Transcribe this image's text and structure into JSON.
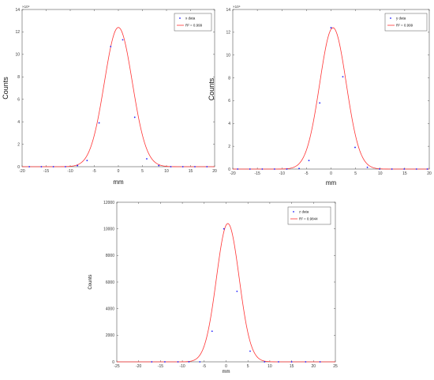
{
  "chart_data": [
    {
      "type": "scatter",
      "xlabel": "mm",
      "ylabel": "Counts",
      "xlim": [
        -20,
        20
      ],
      "ylim": [
        0,
        14
      ],
      "y_exponent_label": "×10⁴",
      "x_ticks": [
        -20,
        -15,
        -10,
        -5,
        0,
        5,
        10,
        15,
        20
      ],
      "y_ticks": [
        0,
        2,
        4,
        6,
        8,
        10,
        12,
        14
      ],
      "legend_position": "top-right",
      "fit": {
        "name": "R² = 0.999",
        "color": "#ff3333",
        "amplitude": 12.4,
        "mean": 0.0,
        "sigma": 2.9
      },
      "series": [
        {
          "name": "x data",
          "color": "#2020ff",
          "points": [
            [
              -18.5,
              0.0
            ],
            [
              -16,
              0.0
            ],
            [
              -13.5,
              0.0
            ],
            [
              -11,
              0.0
            ],
            [
              -8.5,
              0.1
            ],
            [
              -6.5,
              0.55
            ],
            [
              -4,
              3.9
            ],
            [
              -1.6,
              10.7
            ],
            [
              0.9,
              11.3
            ],
            [
              3.4,
              4.4
            ],
            [
              5.9,
              0.7
            ],
            [
              8.4,
              0.1
            ],
            [
              10.9,
              0.0
            ],
            [
              13.4,
              0.0
            ],
            [
              15.9,
              0.0
            ],
            [
              18.4,
              0.0
            ]
          ]
        }
      ]
    },
    {
      "type": "scatter",
      "xlabel": "mm",
      "ylabel": "Counts",
      "xlim": [
        -20,
        20
      ],
      "ylim": [
        0,
        14
      ],
      "y_exponent_label": "×10⁴",
      "x_ticks": [
        -20,
        -15,
        -10,
        -5,
        0,
        5,
        10,
        15,
        20
      ],
      "y_ticks": [
        0,
        2,
        4,
        6,
        8,
        10,
        12,
        14
      ],
      "legend_position": "top-right",
      "fit": {
        "name": "R² = 0.999",
        "color": "#ff3333",
        "amplitude": 12.4,
        "mean": 0.4,
        "sigma": 2.7
      },
      "series": [
        {
          "name": "y data",
          "color": "#2020ff",
          "points": [
            [
              -19,
              0.0
            ],
            [
              -16.5,
              0.0
            ],
            [
              -14,
              0.0
            ],
            [
              -11.5,
              0.0
            ],
            [
              -9,
              0.0
            ],
            [
              -6.5,
              0.05
            ],
            [
              -4.5,
              0.75
            ],
            [
              -2.3,
              5.8
            ],
            [
              0,
              12.4
            ],
            [
              2.4,
              8.1
            ],
            [
              4.9,
              1.9
            ],
            [
              7.4,
              0.15
            ],
            [
              9.9,
              0.0
            ],
            [
              12.4,
              0.0
            ],
            [
              14.9,
              0.0
            ],
            [
              17.4,
              0.0
            ],
            [
              19.6,
              0.0
            ]
          ]
        }
      ]
    },
    {
      "type": "scatter",
      "xlabel": "mm",
      "ylabel": "Counts",
      "xlim": [
        -25,
        25
      ],
      "ylim": [
        0,
        12000
      ],
      "x_ticks": [
        -25,
        -20,
        -15,
        -10,
        -5,
        0,
        5,
        10,
        15,
        20,
        25
      ],
      "y_ticks": [
        0,
        2000,
        4000,
        6000,
        8000,
        10000,
        12000
      ],
      "legend_position": "top-right",
      "fit": {
        "name": "R² = 0.9844",
        "color": "#ff3333",
        "amplitude": 10400,
        "mean": 0.4,
        "sigma": 2.6
      },
      "series": [
        {
          "name": "z data",
          "color": "#2020ff",
          "points": [
            [
              -17,
              0
            ],
            [
              -14,
              0
            ],
            [
              -11,
              0
            ],
            [
              -8.5,
              0
            ],
            [
              -6,
              0
            ],
            [
              -3.2,
              2300
            ],
            [
              -0.5,
              10000
            ],
            [
              2.5,
              5300
            ],
            [
              5.5,
              800
            ],
            [
              8.8,
              0
            ],
            [
              12,
              0
            ],
            [
              15,
              0
            ],
            [
              18.2,
              0
            ],
            [
              21.5,
              0
            ]
          ]
        }
      ]
    }
  ]
}
